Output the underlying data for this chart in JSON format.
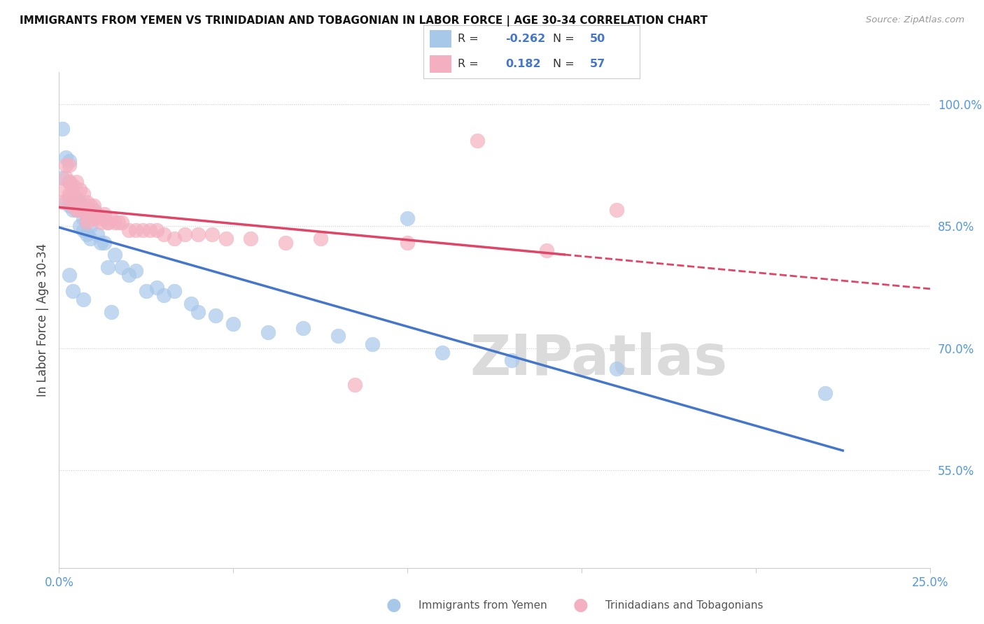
{
  "title": "IMMIGRANTS FROM YEMEN VS TRINIDADIAN AND TOBAGONIAN IN LABOR FORCE | AGE 30-34 CORRELATION CHART",
  "source": "Source: ZipAtlas.com",
  "ylabel": "In Labor Force | Age 30-34",
  "xlim": [
    0.0,
    0.25
  ],
  "ylim": [
    0.43,
    1.04
  ],
  "yticks": [
    0.55,
    0.7,
    0.85,
    1.0
  ],
  "ytick_labels": [
    "55.0%",
    "70.0%",
    "85.0%",
    "100.0%"
  ],
  "xtick_vals": [
    0.0,
    0.05,
    0.1,
    0.15,
    0.2,
    0.25
  ],
  "xtick_labels": [
    "0.0%",
    "",
    "",
    "",
    "",
    "25.0%"
  ],
  "blue_R": -0.262,
  "blue_N": 50,
  "pink_R": 0.182,
  "pink_N": 57,
  "blue_color": "#a8c8ea",
  "pink_color": "#f4b0c0",
  "blue_line_color": "#4477cc",
  "pink_line_color": "#e04466",
  "watermark": "ZIPatlas",
  "blue_points_x": [
    0.001,
    0.001,
    0.002,
    0.002,
    0.003,
    0.003,
    0.003,
    0.004,
    0.004,
    0.005,
    0.005,
    0.005,
    0.006,
    0.006,
    0.007,
    0.007,
    0.008,
    0.008,
    0.009,
    0.009,
    0.01,
    0.011,
    0.012,
    0.013,
    0.014,
    0.016,
    0.018,
    0.02,
    0.022,
    0.025,
    0.028,
    0.03,
    0.033,
    0.038,
    0.04,
    0.045,
    0.05,
    0.06,
    0.07,
    0.08,
    0.09,
    0.1,
    0.11,
    0.13,
    0.16,
    0.22,
    0.003,
    0.004,
    0.007,
    0.015
  ],
  "blue_points_y": [
    0.97,
    0.91,
    0.935,
    0.88,
    0.93,
    0.905,
    0.875,
    0.88,
    0.87,
    0.885,
    0.875,
    0.87,
    0.88,
    0.85,
    0.86,
    0.845,
    0.86,
    0.84,
    0.85,
    0.835,
    0.87,
    0.84,
    0.83,
    0.83,
    0.8,
    0.815,
    0.8,
    0.79,
    0.795,
    0.77,
    0.775,
    0.765,
    0.77,
    0.755,
    0.745,
    0.74,
    0.73,
    0.72,
    0.725,
    0.715,
    0.705,
    0.86,
    0.695,
    0.685,
    0.675,
    0.645,
    0.79,
    0.77,
    0.76,
    0.745
  ],
  "pink_points_x": [
    0.001,
    0.001,
    0.002,
    0.002,
    0.003,
    0.003,
    0.003,
    0.004,
    0.004,
    0.005,
    0.005,
    0.006,
    0.006,
    0.007,
    0.007,
    0.008,
    0.008,
    0.009,
    0.01,
    0.01,
    0.011,
    0.012,
    0.013,
    0.014,
    0.015,
    0.016,
    0.017,
    0.018,
    0.02,
    0.022,
    0.024,
    0.026,
    0.028,
    0.03,
    0.033,
    0.036,
    0.04,
    0.044,
    0.048,
    0.055,
    0.065,
    0.075,
    0.085,
    0.1,
    0.12,
    0.14,
    0.003,
    0.004,
    0.005,
    0.006,
    0.007,
    0.008,
    0.009,
    0.01,
    0.012,
    0.014,
    0.16
  ],
  "pink_points_y": [
    0.895,
    0.88,
    0.925,
    0.91,
    0.925,
    0.905,
    0.89,
    0.9,
    0.89,
    0.905,
    0.875,
    0.895,
    0.87,
    0.89,
    0.87,
    0.88,
    0.86,
    0.875,
    0.875,
    0.86,
    0.865,
    0.86,
    0.865,
    0.855,
    0.86,
    0.855,
    0.855,
    0.855,
    0.845,
    0.845,
    0.845,
    0.845,
    0.845,
    0.84,
    0.835,
    0.84,
    0.84,
    0.84,
    0.835,
    0.835,
    0.83,
    0.835,
    0.655,
    0.83,
    0.955,
    0.82,
    0.885,
    0.875,
    0.87,
    0.875,
    0.87,
    0.855,
    0.87,
    0.86,
    0.855,
    0.855,
    0.87
  ]
}
